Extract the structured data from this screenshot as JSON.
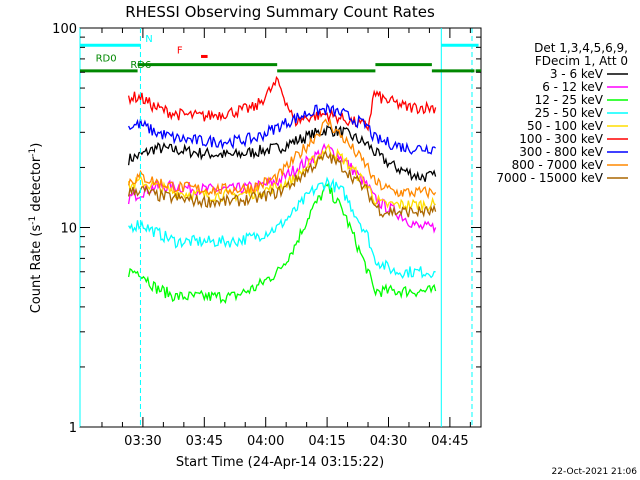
{
  "chart_data": {
    "type": "line",
    "title": "RHESSI Observing Summary Count Rates",
    "xlabel": "Start Time (24-Apr-14 03:15:22)",
    "ylabel_main": "Count Rate (s",
    "ylabel_exp1": "-1",
    "ylabel_mid": " detector",
    "ylabel_exp2": "-1",
    "ylabel_end": ")",
    "y_scale": "log",
    "ylim": [
      1,
      100
    ],
    "y_tick_labels": [
      "1",
      "10",
      "100"
    ],
    "xlim_minutes": [
      -15.37,
      82.6
    ],
    "x_ticks": [
      {
        "t": 0,
        "label": "03:30"
      },
      {
        "t": 15,
        "label": "03:45"
      },
      {
        "t": 30,
        "label": "04:00"
      },
      {
        "t": 45,
        "label": "04:15"
      },
      {
        "t": 60,
        "label": "04:30"
      },
      {
        "t": 75,
        "label": "04:45"
      }
    ],
    "legend_header": [
      "Det 1,3,4,5,6,9,",
      "FDecim 1, Att 0"
    ],
    "legend_position": "right",
    "series": [
      {
        "name": "3 - 6 keV",
        "color": "#000000",
        "x": [
          -3.5,
          -0.6,
          3,
          8,
          15,
          22,
          27.5,
          33,
          37,
          41,
          45,
          49,
          55,
          56.5,
          58.6,
          61.7,
          64.5,
          67.5,
          71.5
        ],
        "y": [
          22,
          23,
          25,
          24.5,
          23.5,
          23,
          24,
          25,
          27,
          29,
          31,
          30,
          26,
          24,
          22,
          20,
          19,
          18,
          18
        ]
      },
      {
        "name": "6 - 12 keV",
        "color": "#ff00ff",
        "x": [
          -3.5,
          -0.6,
          3,
          8,
          15,
          22,
          27.5,
          33,
          37,
          41,
          45,
          49,
          55,
          56.5,
          58.6,
          61.7,
          64.5,
          67.5,
          71.5
        ],
        "y": [
          14,
          15,
          16,
          16,
          15.5,
          15.5,
          16,
          17,
          19.5,
          22,
          25,
          22,
          16,
          14,
          13,
          12,
          11,
          10,
          10
        ]
      },
      {
        "name": "12 - 25 keV",
        "color": "#00ff00",
        "x": [
          -3.5,
          -0.6,
          3,
          8,
          15,
          22,
          27.5,
          33,
          37,
          41,
          45,
          49,
          55,
          56.5,
          58.6,
          61.7,
          64.5,
          67.5,
          71.5
        ],
        "y": [
          6,
          6,
          5,
          4.5,
          4.5,
          4.5,
          5,
          6,
          8,
          12,
          16,
          12,
          6,
          4.8,
          4.8,
          4.8,
          4.8,
          4.8,
          4.8
        ]
      },
      {
        "name": "25 - 50 keV",
        "color": "#00ffff",
        "x": [
          -3.5,
          -0.6,
          3,
          8,
          15,
          22,
          27.5,
          33,
          37,
          41,
          45,
          49,
          55,
          56.5,
          58.6,
          61.7,
          64.5,
          67.5,
          71.5
        ],
        "y": [
          10,
          10.5,
          9.5,
          8.5,
          8.5,
          8.5,
          9,
          10,
          12,
          15,
          17,
          15,
          9,
          7,
          6.5,
          6,
          6,
          6,
          6
        ]
      },
      {
        "name": "50 - 100 keV",
        "color": "#ffdd00",
        "x": [
          -3.5,
          -0.6,
          3,
          8,
          15,
          22,
          27.5,
          33,
          37,
          41,
          45,
          49,
          55,
          56.5,
          58.6,
          61.7,
          64.5,
          67.5,
          71.5
        ],
        "y": [
          16,
          17,
          16,
          15,
          14.5,
          14.5,
          15,
          16,
          17.5,
          21,
          25,
          22,
          16,
          14,
          13,
          13,
          13,
          13,
          13
        ]
      },
      {
        "name": "100 - 300 keV",
        "color": "#ff0000",
        "x": [
          -3.5,
          -0.6,
          3,
          8,
          15,
          22,
          27.5,
          33,
          37,
          41,
          45,
          49,
          55,
          56.5,
          58.6,
          61.7,
          64.5,
          67.5,
          71.5
        ],
        "y": [
          45,
          45,
          40,
          37,
          36,
          38,
          40,
          54,
          34,
          36,
          37,
          35,
          32,
          47,
          44,
          42,
          40,
          40,
          40
        ]
      },
      {
        "name": "300 - 800 keV",
        "color": "#0000ff",
        "x": [
          -3.5,
          -0.6,
          3,
          8,
          15,
          22,
          27.5,
          33,
          37,
          41,
          45,
          49,
          55,
          56.5,
          58.6,
          61.7,
          64.5,
          67.5,
          71.5
        ],
        "y": [
          32,
          33,
          30,
          28,
          27,
          27,
          28,
          32,
          35,
          38,
          39,
          37,
          32,
          28,
          27,
          26,
          25,
          25,
          25
        ]
      },
      {
        "name": "800 - 7000 keV",
        "color": "#ff8800",
        "x": [
          -3.5,
          -0.6,
          3,
          8,
          15,
          22,
          27.5,
          33,
          37,
          41,
          45,
          49,
          55,
          56.5,
          58.6,
          61.7,
          64.5,
          67.5,
          71.5
        ],
        "y": [
          17,
          18,
          17,
          16,
          15.5,
          15.5,
          16,
          18,
          22,
          27,
          34,
          28,
          20,
          17,
          16,
          15,
          15,
          15,
          15
        ]
      },
      {
        "name": "7000 - 15000 keV",
        "color": "#aa6600",
        "x": [
          -3.5,
          -0.6,
          3,
          8,
          15,
          22,
          27.5,
          33,
          37,
          41,
          45,
          49,
          55,
          56.5,
          58.6,
          61.7,
          64.5,
          67.5,
          71.5
        ],
        "y": [
          15,
          15.5,
          14.5,
          14,
          13.5,
          13.5,
          14,
          15,
          17,
          20,
          23,
          20,
          15,
          13,
          12,
          12,
          12,
          12,
          12
        ]
      }
    ],
    "status_bars": [
      {
        "label": "N",
        "color": "#00ffff",
        "segments": [
          [
            -15.37,
            -0.6
          ],
          [
            72.9,
            82
          ]
        ],
        "y": 82,
        "label_t": 1.5
      },
      {
        "label": "F",
        "color": "#ff0000",
        "segments": [
          [
            14.2,
            15.8
          ]
        ],
        "y": 72,
        "label_t": 9
      },
      {
        "label": "RD0",
        "color": "#008800",
        "segments": [
          [
            -1.3,
            32.8
          ],
          [
            56.8,
            70.6
          ]
        ],
        "y": 65.5,
        "label_t": -9
      },
      {
        "label": "RD6",
        "color": "#008800",
        "segments": [
          [
            -15.37,
            -1.3
          ],
          [
            32.8,
            56.8
          ],
          [
            70.6,
            81
          ],
          [
            81.3,
            82.6
          ]
        ],
        "y": 61,
        "label_t": -0.5
      }
    ],
    "vertical_lines": [
      {
        "t": -15.37,
        "color": "#00ffff",
        "dashed": false
      },
      {
        "t": -0.6,
        "color": "#00ffff",
        "dashed": true
      },
      {
        "t": 72.9,
        "color": "#00ffff",
        "dashed": false
      },
      {
        "t": 80.4,
        "color": "#00ffff",
        "dashed": true
      }
    ],
    "footer_timestamp": "22-Oct-2021 21:06"
  }
}
